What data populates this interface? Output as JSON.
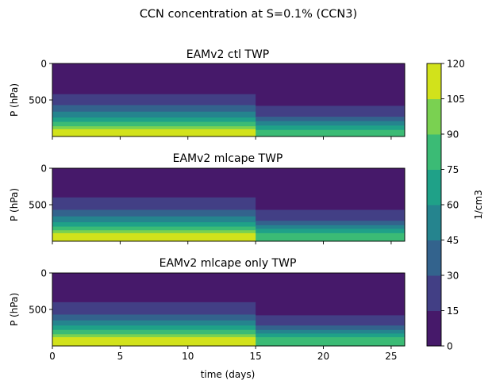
{
  "figure": {
    "suptitle": "CCN concentration at S=0.1% (CCN3)"
  },
  "chart_data": [
    {
      "type": "heatmap",
      "title": "EAMv2 ctl TWP",
      "xlabel": "",
      "ylabel": "P (hPa)",
      "xlim": [
        0,
        26
      ],
      "ylim": [
        1000,
        0
      ],
      "xticks": [
        0,
        5,
        10,
        15,
        20,
        25
      ],
      "yticks": [
        0,
        500
      ],
      "show_xticklabels": false,
      "split_day": 15,
      "bands": [
        {
          "x": [
            0,
            15
          ],
          "p_top": 0,
          "p_bottom": 420,
          "level_bin": 0
        },
        {
          "x": [
            0,
            15
          ],
          "p_top": 420,
          "p_bottom": 570,
          "level_bin": 1
        },
        {
          "x": [
            0,
            15
          ],
          "p_top": 570,
          "p_bottom": 660,
          "level_bin": 2
        },
        {
          "x": [
            0,
            15
          ],
          "p_top": 660,
          "p_bottom": 740,
          "level_bin": 3
        },
        {
          "x": [
            0,
            15
          ],
          "p_top": 740,
          "p_bottom": 800,
          "level_bin": 4
        },
        {
          "x": [
            0,
            15
          ],
          "p_top": 800,
          "p_bottom": 860,
          "level_bin": 5
        },
        {
          "x": [
            0,
            15
          ],
          "p_top": 860,
          "p_bottom": 900,
          "level_bin": 6
        },
        {
          "x": [
            0,
            15
          ],
          "p_top": 900,
          "p_bottom": 1000,
          "level_bin": 7
        },
        {
          "x": [
            15,
            26
          ],
          "p_top": 0,
          "p_bottom": 580,
          "level_bin": 0
        },
        {
          "x": [
            15,
            26
          ],
          "p_top": 580,
          "p_bottom": 730,
          "level_bin": 1
        },
        {
          "x": [
            15,
            26
          ],
          "p_top": 730,
          "p_bottom": 790,
          "level_bin": 2
        },
        {
          "x": [
            15,
            26
          ],
          "p_top": 790,
          "p_bottom": 850,
          "level_bin": 3
        },
        {
          "x": [
            15,
            26
          ],
          "p_top": 850,
          "p_bottom": 910,
          "level_bin": 4
        },
        {
          "x": [
            15,
            26
          ],
          "p_top": 910,
          "p_bottom": 1000,
          "level_bin": 5
        }
      ]
    },
    {
      "type": "heatmap",
      "title": "EAMv2 mlcape TWP",
      "xlabel": "",
      "ylabel": "P (hPa)",
      "xlim": [
        0,
        26
      ],
      "ylim": [
        1000,
        0
      ],
      "xticks": [
        0,
        5,
        10,
        15,
        20,
        25
      ],
      "yticks": [
        0,
        500
      ],
      "show_xticklabels": false,
      "split_day": 15,
      "bands": [
        {
          "x": [
            0,
            15
          ],
          "p_top": 0,
          "p_bottom": 400,
          "level_bin": 0
        },
        {
          "x": [
            0,
            15
          ],
          "p_top": 400,
          "p_bottom": 570,
          "level_bin": 1
        },
        {
          "x": [
            0,
            15
          ],
          "p_top": 570,
          "p_bottom": 660,
          "level_bin": 2
        },
        {
          "x": [
            0,
            15
          ],
          "p_top": 660,
          "p_bottom": 740,
          "level_bin": 3
        },
        {
          "x": [
            0,
            15
          ],
          "p_top": 740,
          "p_bottom": 800,
          "level_bin": 4
        },
        {
          "x": [
            0,
            15
          ],
          "p_top": 800,
          "p_bottom": 850,
          "level_bin": 5
        },
        {
          "x": [
            0,
            15
          ],
          "p_top": 850,
          "p_bottom": 890,
          "level_bin": 6
        },
        {
          "x": [
            0,
            15
          ],
          "p_top": 890,
          "p_bottom": 1000,
          "level_bin": 7
        },
        {
          "x": [
            15,
            26
          ],
          "p_top": 0,
          "p_bottom": 570,
          "level_bin": 0
        },
        {
          "x": [
            15,
            26
          ],
          "p_top": 570,
          "p_bottom": 720,
          "level_bin": 1
        },
        {
          "x": [
            15,
            26
          ],
          "p_top": 720,
          "p_bottom": 780,
          "level_bin": 2
        },
        {
          "x": [
            15,
            26
          ],
          "p_top": 780,
          "p_bottom": 830,
          "level_bin": 3
        },
        {
          "x": [
            15,
            26
          ],
          "p_top": 830,
          "p_bottom": 890,
          "level_bin": 4
        },
        {
          "x": [
            15,
            26
          ],
          "p_top": 890,
          "p_bottom": 1000,
          "level_bin": 5
        }
      ]
    },
    {
      "type": "heatmap",
      "title": "EAMv2 mlcape only TWP",
      "xlabel": "time (days)",
      "ylabel": "P (hPa)",
      "xlim": [
        0,
        26
      ],
      "ylim": [
        1000,
        0
      ],
      "xticks": [
        0,
        5,
        10,
        15,
        20,
        25
      ],
      "yticks": [
        0,
        500
      ],
      "show_xticklabels": true,
      "split_day": 15,
      "bands": [
        {
          "x": [
            0,
            15
          ],
          "p_top": 0,
          "p_bottom": 400,
          "level_bin": 0
        },
        {
          "x": [
            0,
            15
          ],
          "p_top": 400,
          "p_bottom": 570,
          "level_bin": 1
        },
        {
          "x": [
            0,
            15
          ],
          "p_top": 570,
          "p_bottom": 650,
          "level_bin": 2
        },
        {
          "x": [
            0,
            15
          ],
          "p_top": 650,
          "p_bottom": 720,
          "level_bin": 3
        },
        {
          "x": [
            0,
            15
          ],
          "p_top": 720,
          "p_bottom": 780,
          "level_bin": 4
        },
        {
          "x": [
            0,
            15
          ],
          "p_top": 780,
          "p_bottom": 840,
          "level_bin": 5
        },
        {
          "x": [
            0,
            15
          ],
          "p_top": 840,
          "p_bottom": 880,
          "level_bin": 6
        },
        {
          "x": [
            0,
            15
          ],
          "p_top": 880,
          "p_bottom": 1000,
          "level_bin": 7
        },
        {
          "x": [
            15,
            26
          ],
          "p_top": 0,
          "p_bottom": 580,
          "level_bin": 0
        },
        {
          "x": [
            15,
            26
          ],
          "p_top": 580,
          "p_bottom": 720,
          "level_bin": 1
        },
        {
          "x": [
            15,
            26
          ],
          "p_top": 720,
          "p_bottom": 780,
          "level_bin": 2
        },
        {
          "x": [
            15,
            26
          ],
          "p_top": 780,
          "p_bottom": 830,
          "level_bin": 3
        },
        {
          "x": [
            15,
            26
          ],
          "p_top": 830,
          "p_bottom": 880,
          "level_bin": 4
        },
        {
          "x": [
            15,
            26
          ],
          "p_top": 880,
          "p_bottom": 1000,
          "level_bin": 5
        }
      ]
    }
  ],
  "colorbar": {
    "label": "1/cm3",
    "levels": [
      0,
      15,
      30,
      45,
      60,
      75,
      90,
      105,
      120
    ],
    "colors": [
      "#46196a",
      "#423f85",
      "#33638d",
      "#25848e",
      "#1fa188",
      "#3bbb75",
      "#7ad151",
      "#d2e21b"
    ]
  }
}
